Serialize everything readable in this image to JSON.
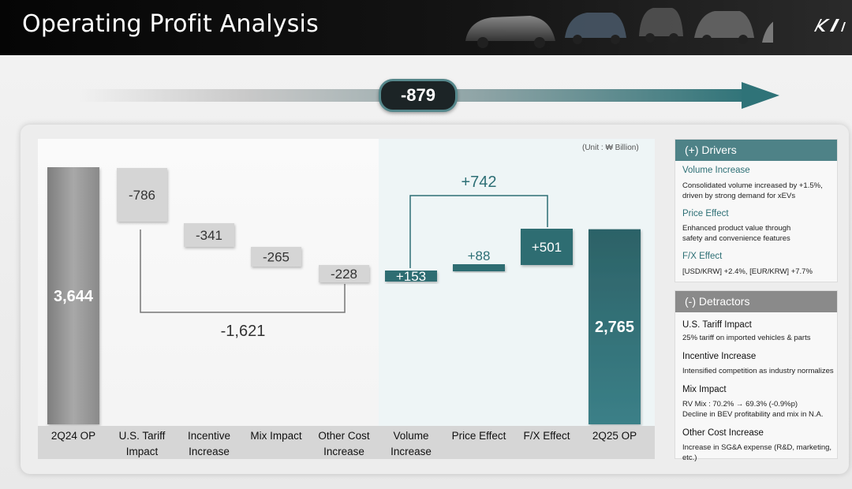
{
  "header": {
    "title": "Operating Profit Analysis",
    "logo_text": "KIA"
  },
  "summary": {
    "total_change": "-879"
  },
  "unit_note": "(Unit : ₩ Billion)",
  "brackets": {
    "negative_total": "-1,621",
    "positive_total": "+742"
  },
  "colors": {
    "gray_bar": "#9a9a9a",
    "teal_bar": "#2e6d72",
    "decrease_box": "#d2d2d2",
    "accent": "#4e8287"
  },
  "chart_data": {
    "type": "bar",
    "subtype": "waterfall",
    "categories": [
      "2Q24 OP",
      "U.S. Tariff Impact",
      "Incentive Increase",
      "Mix Impact",
      "Other Cost Increase",
      "Volume Increase",
      "Price Effect",
      "F/X Effect",
      "2Q25 OP"
    ],
    "category_lines": [
      [
        "2Q24 OP"
      ],
      [
        "U.S. Tariff",
        "Impact"
      ],
      [
        "Incentive",
        "Increase"
      ],
      [
        "Mix Impact"
      ],
      [
        "Other Cost",
        "Increase"
      ],
      [
        "Volume",
        "Increase"
      ],
      [
        "Price Effect"
      ],
      [
        "F/X Effect"
      ],
      [
        "2Q25 OP"
      ]
    ],
    "values": [
      3644,
      -786,
      -341,
      -265,
      -228,
      153,
      88,
      501,
      2765
    ],
    "labels": [
      "3,644",
      "-786",
      "-341",
      "-265",
      "-228",
      "+153",
      "+88",
      "+501",
      "2,765"
    ],
    "kinds": [
      "total",
      "decrease",
      "decrease",
      "decrease",
      "decrease",
      "increase",
      "increase",
      "increase",
      "total"
    ],
    "unit": "₩ Billion",
    "legend": "none",
    "grid": false
  },
  "drivers": {
    "title": "(+) Drivers",
    "items": [
      {
        "title": "Volume Increase",
        "desc": [
          "Consolidated volume increased by +1.5%,",
          "driven by strong demand for xEVs"
        ]
      },
      {
        "title": "Price Effect",
        "desc": [
          "Enhanced product value through",
          "safety and convenience features"
        ]
      },
      {
        "title": "F/X Effect",
        "desc": [
          "[USD/KRW] +2.4%, [EUR/KRW] +7.7%"
        ]
      }
    ]
  },
  "detractors": {
    "title": "(-) Detractors",
    "items": [
      {
        "title": "U.S. Tariff Impact",
        "desc": [
          "25% tariff on imported vehicles & parts"
        ]
      },
      {
        "title": "Incentive Increase",
        "desc": [
          "Intensified competition as industry normalizes"
        ]
      },
      {
        "title": "Mix Impact",
        "desc": [
          "RV Mix : 70.2% → 69.3% (-0.9%p)",
          "Decline in BEV profitability and mix in N.A."
        ]
      },
      {
        "title": "Other Cost Increase",
        "desc": [
          "Increase in SG&A expense (R&D, marketing, etc.)"
        ]
      }
    ]
  }
}
